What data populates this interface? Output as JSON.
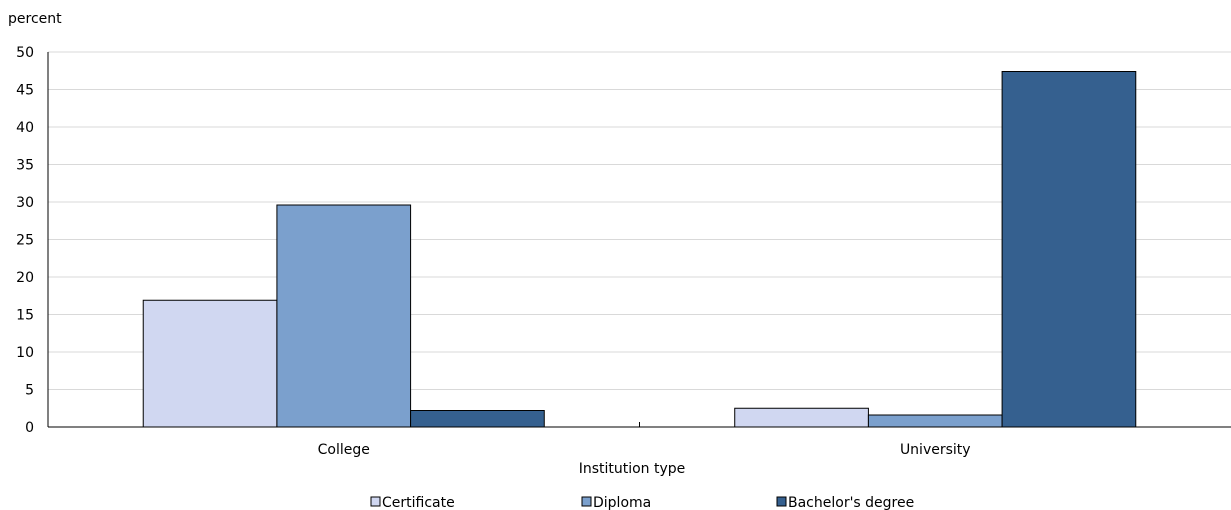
{
  "chart_data": {
    "type": "bar",
    "ylabel": "percent",
    "xlabel": "Institution type",
    "categories": [
      "College",
      "University"
    ],
    "ylim": [
      0,
      50
    ],
    "yticks": [
      0,
      5,
      10,
      15,
      20,
      25,
      30,
      35,
      40,
      45,
      50
    ],
    "grid": true,
    "legend_position": "bottom",
    "series": [
      {
        "name": "Certificate",
        "values": [
          16.9,
          2.5
        ],
        "color": "#d0d7f1"
      },
      {
        "name": "Diploma",
        "values": [
          29.6,
          1.6
        ],
        "color": "#7ba0cd"
      },
      {
        "name": "Bachelor's degree",
        "values": [
          2.2,
          47.4
        ],
        "color": "#35608f"
      }
    ]
  }
}
